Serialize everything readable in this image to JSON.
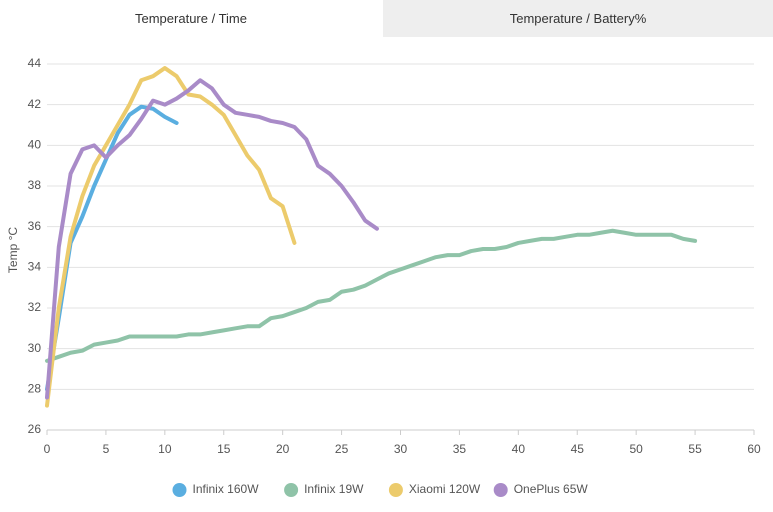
{
  "tabs": [
    "Temperature / Time",
    "Temperature / Battery%"
  ],
  "chart_data": {
    "type": "line",
    "y_label": "Temp °C",
    "xlim": [
      0,
      60
    ],
    "xticks": [
      0,
      5,
      10,
      15,
      20,
      25,
      30,
      35,
      40,
      45,
      50,
      55,
      60
    ],
    "ylim": [
      26,
      44
    ],
    "yticks": [
      26,
      28,
      30,
      32,
      34,
      36,
      38,
      40,
      42,
      44
    ],
    "grid": true,
    "legend": "bottom",
    "series": [
      {
        "name": "Infinix 160W",
        "color": "#5aaee0",
        "x": [
          0,
          1,
          2,
          3,
          4,
          5,
          6,
          7,
          8,
          9,
          10,
          11
        ],
        "values": [
          28,
          31.5,
          35.2,
          36.5,
          38,
          39.3,
          40.6,
          41.5,
          41.9,
          41.8,
          41.4,
          41.1
        ]
      },
      {
        "name": "Infinix 19W",
        "color": "#8fc3a8",
        "x": [
          0,
          1,
          2,
          3,
          4,
          5,
          6,
          7,
          8,
          9,
          10,
          11,
          12,
          13,
          14,
          15,
          16,
          17,
          18,
          19,
          20,
          21,
          22,
          23,
          24,
          25,
          26,
          27,
          28,
          29,
          30,
          31,
          32,
          33,
          34,
          35,
          36,
          37,
          38,
          39,
          40,
          41,
          42,
          43,
          44,
          45,
          46,
          47,
          48,
          49,
          50,
          51,
          52,
          53,
          54,
          55
        ],
        "values": [
          29.4,
          29.6,
          29.8,
          29.9,
          30.2,
          30.3,
          30.4,
          30.6,
          30.6,
          30.6,
          30.6,
          30.6,
          30.7,
          30.7,
          30.8,
          30.9,
          31.0,
          31.1,
          31.1,
          31.5,
          31.6,
          31.8,
          32.0,
          32.3,
          32.4,
          32.8,
          32.9,
          33.1,
          33.4,
          33.7,
          33.9,
          34.1,
          34.3,
          34.5,
          34.6,
          34.6,
          34.8,
          34.9,
          34.9,
          35.0,
          35.2,
          35.3,
          35.4,
          35.4,
          35.5,
          35.6,
          35.6,
          35.7,
          35.8,
          35.7,
          35.6,
          35.6,
          35.6,
          35.6,
          35.4,
          35.3
        ]
      },
      {
        "name": "Xiaomi 120W",
        "color": "#eccb6c",
        "x": [
          0,
          1,
          2,
          3,
          4,
          5,
          6,
          7,
          8,
          9,
          10,
          11,
          12,
          13,
          14,
          15,
          16,
          17,
          18,
          19,
          20,
          21
        ],
        "values": [
          27.2,
          32,
          35.5,
          37.5,
          39,
          40,
          41,
          42,
          43.2,
          43.4,
          43.8,
          43.4,
          42.5,
          42.4,
          42,
          41.5,
          40.5,
          39.5,
          38.8,
          37.4,
          37,
          35.2
        ]
      },
      {
        "name": "OnePlus 65W",
        "color": "#a98bc8",
        "x": [
          0,
          1,
          2,
          3,
          4,
          5,
          6,
          7,
          8,
          9,
          10,
          11,
          12,
          13,
          14,
          15,
          16,
          17,
          18,
          19,
          20,
          21,
          22,
          23,
          24,
          25,
          26,
          27,
          28
        ],
        "values": [
          27.6,
          35,
          38.6,
          39.8,
          40,
          39.4,
          40,
          40.5,
          41.3,
          42.2,
          42,
          42.3,
          42.7,
          43.2,
          42.8,
          42,
          41.6,
          41.5,
          41.4,
          41.2,
          41.1,
          40.9,
          40.3,
          39,
          38.6,
          38,
          37.2,
          36.3,
          35.9
        ]
      }
    ]
  }
}
